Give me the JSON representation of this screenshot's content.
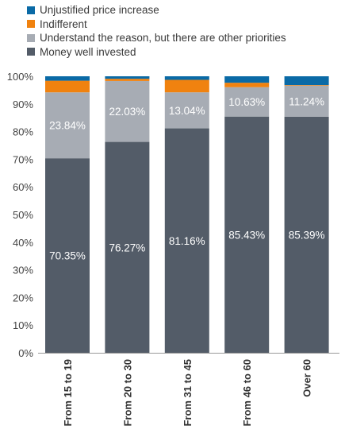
{
  "chart_data": {
    "type": "bar",
    "stacked": true,
    "categories": [
      "From 15 to 19",
      "From 20 to 30",
      "From 31 to 45",
      "From 46 to 60",
      "Over 60"
    ],
    "series": [
      {
        "name": "Money well invested",
        "color": "#535c68",
        "values": [
          70.35,
          76.27,
          81.16,
          85.43,
          85.39
        ],
        "labels": [
          "70.35%",
          "76.27%",
          "81.16%",
          "85.43%",
          "85.39%"
        ]
      },
      {
        "name": "Understand the reason, but there are other priorities",
        "color": "#a7acb4",
        "values": [
          23.84,
          22.03,
          13.04,
          10.63,
          11.24
        ],
        "labels": [
          "23.84%",
          "22.03%",
          "13.04%",
          "10.63%",
          "11.24%"
        ]
      },
      {
        "name": "Indifferent",
        "color": "#f0820f",
        "values": [
          4.2,
          0.8,
          4.5,
          1.6,
          0.2
        ]
      },
      {
        "name": "Unjustified price increase",
        "color": "#0a6aa6",
        "values": [
          1.61,
          0.9,
          1.3,
          2.34,
          3.17
        ]
      }
    ],
    "legend_order": [
      "Unjustified price increase",
      "Indifferent",
      "Understand the reason, but there are other priorities",
      "Money well invested"
    ],
    "yticks": [
      "0%",
      "10%",
      "20%",
      "30%",
      "40%",
      "50%",
      "60%",
      "70%",
      "80%",
      "90%",
      "100%"
    ],
    "ylim": [
      0,
      100
    ],
    "legend_position": "top-left",
    "grid": false
  }
}
